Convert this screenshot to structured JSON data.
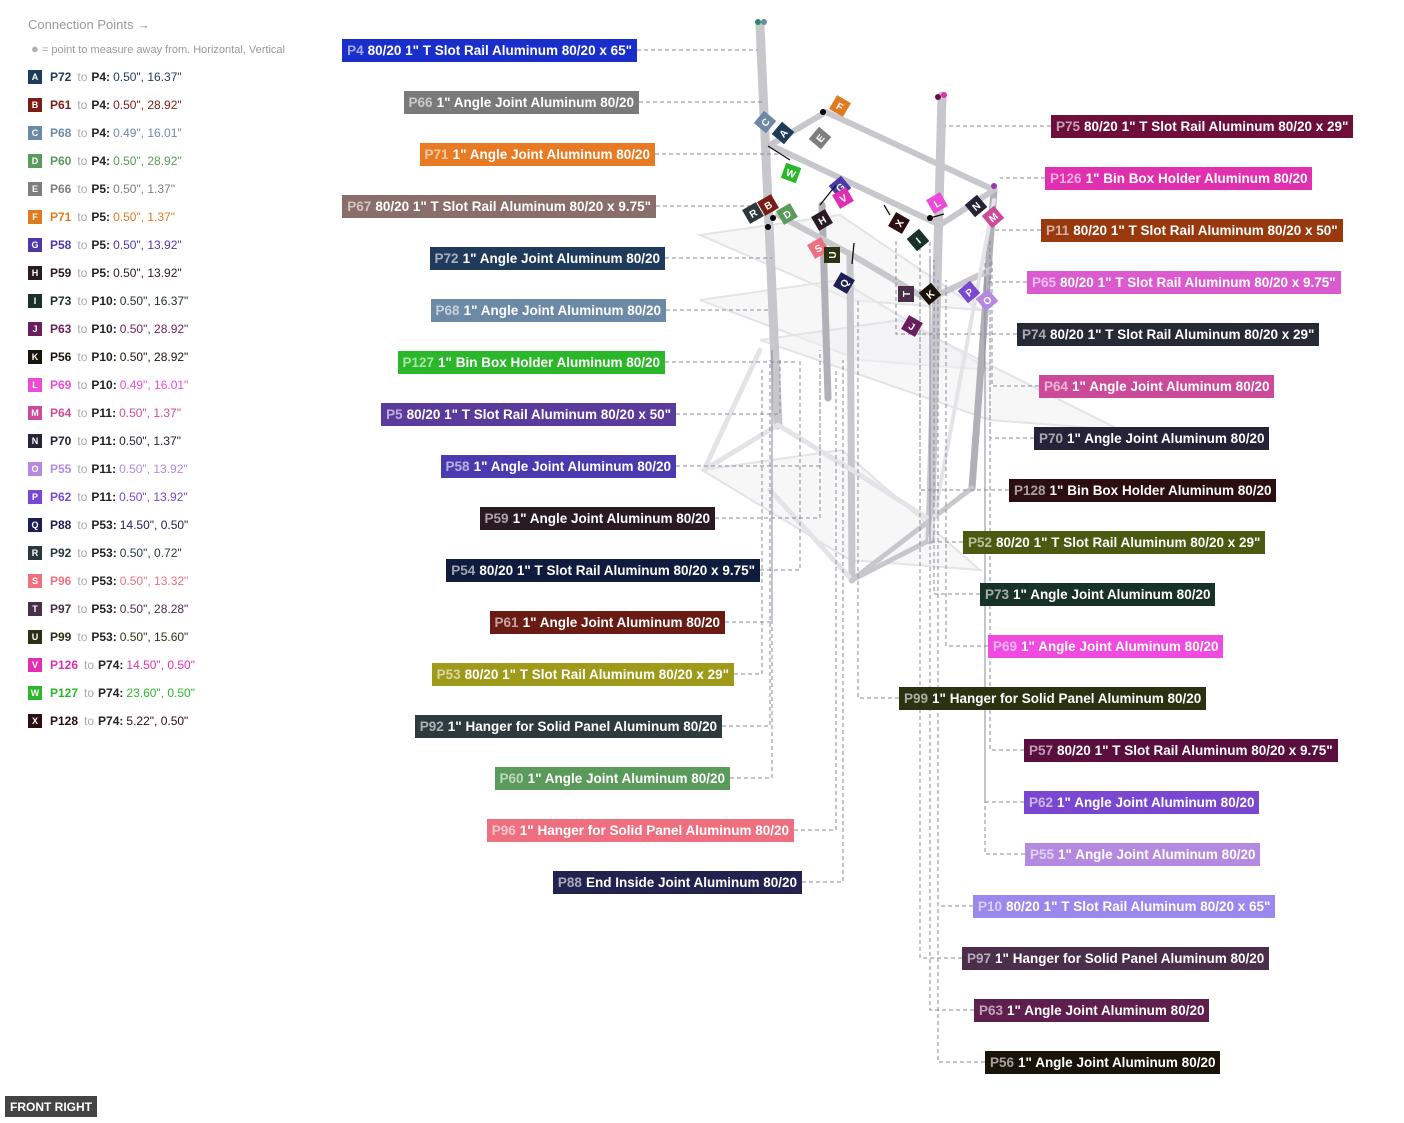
{
  "legend": {
    "title": "Connection Points →",
    "subtitle": "= point to measure away from. Horizontal, Vertical",
    "to_word": "to",
    "items": [
      {
        "letter": "A",
        "from": "P72",
        "target": "P4:",
        "vals": "0.50\", 16.37\"",
        "color": "#1f3a5a"
      },
      {
        "letter": "B",
        "from": "P61",
        "target": "P4:",
        "vals": "0.50\", 28.92\"",
        "color": "#7a1d16"
      },
      {
        "letter": "C",
        "from": "P68",
        "target": "P4:",
        "vals": "0.49\", 16.01\"",
        "color": "#6c8aa6"
      },
      {
        "letter": "D",
        "from": "P60",
        "target": "P4:",
        "vals": "0.50\", 28.92\"",
        "color": "#5a9a5a"
      },
      {
        "letter": "E",
        "from": "P66",
        "target": "P5:",
        "vals": "0.50\", 1.37\"",
        "color": "#7e7e7e"
      },
      {
        "letter": "F",
        "from": "P71",
        "target": "P5:",
        "vals": "0.50\", 1.37\"",
        "color": "#e07a20"
      },
      {
        "letter": "G",
        "from": "P58",
        "target": "P5:",
        "vals": "0.50\", 13.92\"",
        "color": "#4a3aa8"
      },
      {
        "letter": "H",
        "from": "P59",
        "target": "P5:",
        "vals": "0.50\", 13.92\"",
        "color": "#2a1a22"
      },
      {
        "letter": "I",
        "from": "P73",
        "target": "P10:",
        "vals": "0.50\", 16.37\"",
        "color": "#183228"
      },
      {
        "letter": "J",
        "from": "P63",
        "target": "P10:",
        "vals": "0.50\", 28.92\"",
        "color": "#6a1e5e"
      },
      {
        "letter": "K",
        "from": "P56",
        "target": "P10:",
        "vals": "0.50\", 28.92\"",
        "color": "#1a1408"
      },
      {
        "letter": "L",
        "from": "P69",
        "target": "P10:",
        "vals": "0.49\", 16.01\"",
        "color": "#ee4ad8"
      },
      {
        "letter": "M",
        "from": "P64",
        "target": "P11:",
        "vals": "0.50\", 1.37\"",
        "color": "#cc4a9a"
      },
      {
        "letter": "N",
        "from": "P70",
        "target": "P11:",
        "vals": "0.50\", 1.37\"",
        "color": "#262238"
      },
      {
        "letter": "O",
        "from": "P55",
        "target": "P11:",
        "vals": "0.50\", 13.92\"",
        "color": "#b48ae0"
      },
      {
        "letter": "P",
        "from": "P62",
        "target": "P11:",
        "vals": "0.50\", 13.92\"",
        "color": "#7a48d0"
      },
      {
        "letter": "Q",
        "from": "P88",
        "target": "P53:",
        "vals": "14.50\", 0.50\"",
        "color": "#1e1e52"
      },
      {
        "letter": "R",
        "from": "P92",
        "target": "P53:",
        "vals": "0.50\", 0.72\"",
        "color": "#2a383c"
      },
      {
        "letter": "S",
        "from": "P96",
        "target": "P53:",
        "vals": "0.50\", 13.32\"",
        "color": "#ee7080"
      },
      {
        "letter": "T",
        "from": "P97",
        "target": "P53:",
        "vals": "0.50\", 28.28\"",
        "color": "#4a2e4a"
      },
      {
        "letter": "U",
        "from": "P99",
        "target": "P53:",
        "vals": "0.50\", 15.60\"",
        "color": "#2a3212"
      },
      {
        "letter": "V",
        "from": "P126",
        "target": "P74:",
        "vals": "14.50\", 0.50\"",
        "color": "#e030b0"
      },
      {
        "letter": "W",
        "from": "P127",
        "target": "P74:",
        "vals": "23.60\", 0.50\"",
        "color": "#2ab82a"
      },
      {
        "letter": "X",
        "from": "P128",
        "target": "P74:",
        "vals": "5.22\", 0.50\"",
        "color": "#2a0e10"
      }
    ]
  },
  "parts_left": [
    {
      "id": "P4",
      "name": "80/20 1\" T Slot Rail Aluminum 80/20 x 65\"",
      "color": "#1a2ecc"
    },
    {
      "id": "P66",
      "name": "1\" Angle Joint Aluminum 80/20",
      "color": "#7a7a7a"
    },
    {
      "id": "P71",
      "name": "1\" Angle Joint Aluminum 80/20",
      "color": "#e87a24"
    },
    {
      "id": "P67",
      "name": "80/20 1\" T Slot Rail Aluminum 80/20 x 9.75\"",
      "color": "#8a6e6a"
    },
    {
      "id": "P72",
      "name": "1\" Angle Joint Aluminum 80/20",
      "color": "#1f3a5a"
    },
    {
      "id": "P68",
      "name": "1\" Angle Joint Aluminum 80/20",
      "color": "#6c8aa6"
    },
    {
      "id": "P127",
      "name": "1\" Bin Box Holder Aluminum 80/20",
      "color": "#2ab82a"
    },
    {
      "id": "P5",
      "name": "80/20 1\" T Slot Rail Aluminum 80/20 x 50\"",
      "color": "#5a3a9a"
    },
    {
      "id": "P58",
      "name": "1\" Angle Joint Aluminum 80/20",
      "color": "#4a3ab0"
    },
    {
      "id": "P59",
      "name": "1\" Angle Joint Aluminum 80/20",
      "color": "#2a1a22"
    },
    {
      "id": "P54",
      "name": "80/20 1\" T Slot Rail Aluminum 80/20 x 9.75\"",
      "color": "#101c3e"
    },
    {
      "id": "P61",
      "name": "1\" Angle Joint Aluminum 80/20",
      "color": "#6a1c14"
    },
    {
      "id": "P53",
      "name": "80/20 1\" T Slot Rail Aluminum 80/20 x 29\"",
      "color": "#a09a1a"
    },
    {
      "id": "P92",
      "name": "1\" Hanger for Solid Panel Aluminum 80/20",
      "color": "#2e3a3e"
    },
    {
      "id": "P60",
      "name": "1\" Angle Joint Aluminum 80/20",
      "color": "#5a9a5a"
    },
    {
      "id": "P96",
      "name": "1\" Hanger for Solid Panel Aluminum 80/20",
      "color": "#ee7080"
    },
    {
      "id": "P88",
      "name": "End Inside Joint  Aluminum 80/20",
      "color": "#22224e"
    }
  ],
  "parts_right": [
    {
      "id": "P75",
      "name": "80/20 1\" T Slot Rail Aluminum 80/20 x 29\"",
      "color": "#6e0e3a"
    },
    {
      "id": "P126",
      "name": "1\" Bin Box Holder Aluminum 80/20",
      "color": "#e030b0"
    },
    {
      "id": "P11",
      "name": "80/20 1\" T Slot Rail Aluminum 80/20 x 50\"",
      "color": "#983a0e"
    },
    {
      "id": "P65",
      "name": "80/20 1\" T Slot Rail Aluminum 80/20 x 9.75\"",
      "color": "#dc5ad0"
    },
    {
      "id": "P74",
      "name": "80/20 1\" T Slot Rail Aluminum 80/20 x 29\"",
      "color": "#262a36"
    },
    {
      "id": "P64",
      "name": "1\" Angle Joint Aluminum 80/20",
      "color": "#cc4a9a"
    },
    {
      "id": "P70",
      "name": "1\" Angle Joint Aluminum 80/20",
      "color": "#262238"
    },
    {
      "id": "P128",
      "name": "1\" Bin Box Holder Aluminum 80/20",
      "color": "#2a0e10"
    },
    {
      "id": "P52",
      "name": "80/20 1\" T Slot Rail Aluminum 80/20 x 29\"",
      "color": "#4a5a10"
    },
    {
      "id": "P73",
      "name": "1\" Angle Joint Aluminum 80/20",
      "color": "#183228"
    },
    {
      "id": "P69",
      "name": "1\" Angle Joint Aluminum 80/20",
      "color": "#f04ae0"
    },
    {
      "id": "P99",
      "name": "1\" Hanger for Solid Panel Aluminum 80/20",
      "color": "#2a3212"
    },
    {
      "id": "P57",
      "name": "80/20 1\" T Slot Rail Aluminum 80/20 x 9.75\"",
      "color": "#5a0e3e"
    },
    {
      "id": "P62",
      "name": "1\" Angle Joint Aluminum 80/20",
      "color": "#7a48d0"
    },
    {
      "id": "P55",
      "name": "1\" Angle Joint Aluminum 80/20",
      "color": "#b48ae0"
    },
    {
      "id": "P10",
      "name": "80/20 1\" T Slot Rail Aluminum 80/20 x 65\"",
      "color": "#9a88ee"
    },
    {
      "id": "P97",
      "name": "1\" Hanger for Solid Panel Aluminum 80/20",
      "color": "#4a2e4a"
    },
    {
      "id": "P63",
      "name": "1\" Angle Joint Aluminum 80/20",
      "color": "#5e1e4e"
    },
    {
      "id": "P56",
      "name": "1\" Angle Joint Aluminum 80/20",
      "color": "#1a1408"
    }
  ],
  "view_label": "FRONT RIGHT"
}
